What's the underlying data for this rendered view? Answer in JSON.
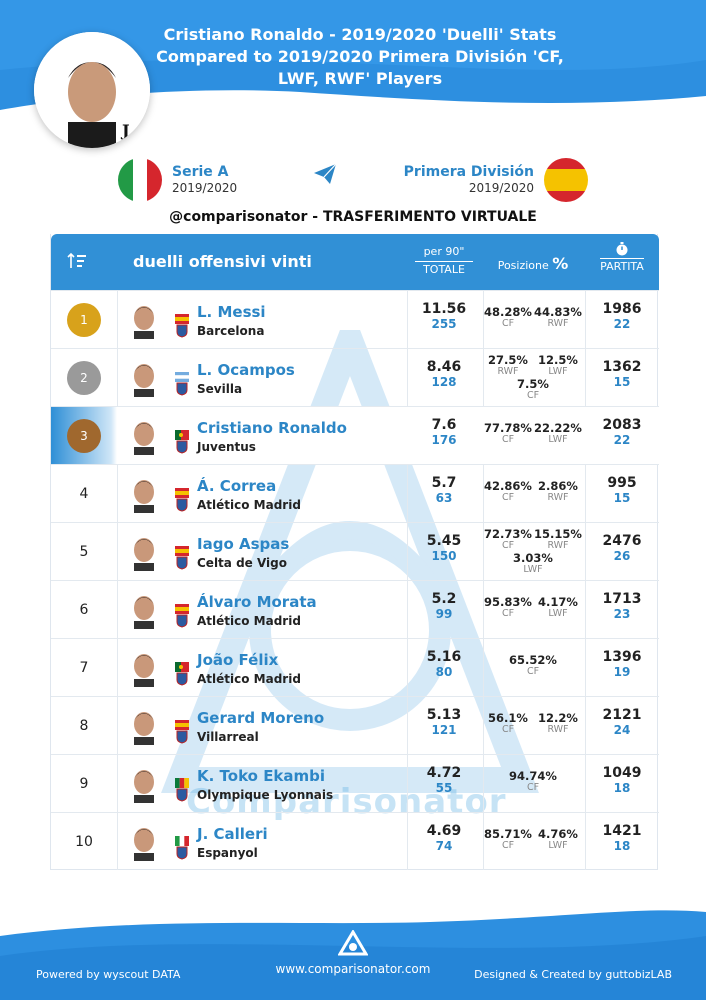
{
  "header": {
    "title_line1": "Cristiano Ronaldo - 2019/2020 'Duelli' Stats",
    "title_line2": "Compared to 2019/2020 Primera División 'CF,",
    "title_line3": "LWF, RWF' Players"
  },
  "league_left": {
    "name": "Serie A",
    "season": "2019/2020"
  },
  "league_right": {
    "name": "Primera División",
    "season": "2019/2020"
  },
  "tagline": "@comparisonator - TRASFERIMENTO VIRTUALE",
  "table_header": {
    "category": "duelli offensivi vinti",
    "per90": "per 90\"",
    "total": "TOTALE",
    "position": "Posizione",
    "position_symbol": "%",
    "match": "PARTITA"
  },
  "rows": [
    {
      "rank": "1",
      "name": "L. Messi",
      "club": "Barcelona",
      "per90": "11.56",
      "total": "255",
      "pos": [
        {
          "p": "48.28%",
          "r": "CF"
        },
        {
          "p": "44.83%",
          "r": "RWF"
        }
      ],
      "minutes": "1986",
      "matches": "22"
    },
    {
      "rank": "2",
      "name": "L. Ocampos",
      "club": "Sevilla",
      "per90": "8.46",
      "total": "128",
      "pos": [
        {
          "p": "27.5%",
          "r": "RWF"
        },
        {
          "p": "12.5%",
          "r": "LWF"
        },
        {
          "p": "7.5%",
          "r": "CF"
        }
      ],
      "minutes": "1362",
      "matches": "15"
    },
    {
      "rank": "3",
      "name": "Cristiano Ronaldo",
      "club": "Juventus",
      "per90": "7.6",
      "total": "176",
      "pos": [
        {
          "p": "77.78%",
          "r": "CF"
        },
        {
          "p": "22.22%",
          "r": "LWF"
        }
      ],
      "minutes": "2083",
      "matches": "22"
    },
    {
      "rank": "4",
      "name": "Á. Correa",
      "club": "Atlético Madrid",
      "per90": "5.7",
      "total": "63",
      "pos": [
        {
          "p": "42.86%",
          "r": "CF"
        },
        {
          "p": "2.86%",
          "r": "RWF"
        }
      ],
      "minutes": "995",
      "matches": "15"
    },
    {
      "rank": "5",
      "name": "Iago Aspas",
      "club": "Celta de Vigo",
      "per90": "5.45",
      "total": "150",
      "pos": [
        {
          "p": "72.73%",
          "r": "CF"
        },
        {
          "p": "15.15%",
          "r": "RWF"
        },
        {
          "p": "3.03%",
          "r": "LWF"
        }
      ],
      "minutes": "2476",
      "matches": "26"
    },
    {
      "rank": "6",
      "name": "Álvaro Morata",
      "club": "Atlético Madrid",
      "per90": "5.2",
      "total": "99",
      "pos": [
        {
          "p": "95.83%",
          "r": "CF"
        },
        {
          "p": "4.17%",
          "r": "LWF"
        }
      ],
      "minutes": "1713",
      "matches": "23"
    },
    {
      "rank": "7",
      "name": "João Félix",
      "club": "Atlético Madrid",
      "per90": "5.16",
      "total": "80",
      "pos": [
        {
          "p": "65.52%",
          "r": "CF"
        }
      ],
      "minutes": "1396",
      "matches": "19"
    },
    {
      "rank": "8",
      "name": "Gerard Moreno",
      "club": "Villarreal",
      "per90": "5.13",
      "total": "121",
      "pos": [
        {
          "p": "56.1%",
          "r": "CF"
        },
        {
          "p": "12.2%",
          "r": "RWF"
        }
      ],
      "minutes": "2121",
      "matches": "24"
    },
    {
      "rank": "9",
      "name": "K. Toko Ekambi",
      "club": "Olympique Lyonnais",
      "per90": "4.72",
      "total": "55",
      "pos": [
        {
          "p": "94.74%",
          "r": "CF"
        }
      ],
      "minutes": "1049",
      "matches": "18"
    },
    {
      "rank": "10",
      "name": "J. Calleri",
      "club": "Espanyol",
      "per90": "4.69",
      "total": "74",
      "pos": [
        {
          "p": "85.71%",
          "r": "CF"
        },
        {
          "p": "4.76%",
          "r": "LWF"
        }
      ],
      "minutes": "1421",
      "matches": "18"
    }
  ],
  "row_flags": [
    "spain",
    "argentina",
    "portugal",
    "spain",
    "spain",
    "spain",
    "portugal",
    "spain",
    "cameroon",
    "italy"
  ],
  "watermark_text": "Comparisonator",
  "footer": {
    "left": "Powered by wyscout DATA",
    "center": "www.comparisonator.com",
    "right": "Designed & Created by guttobizLAB"
  },
  "colors": {
    "accent": "#2c86c6",
    "header": "#3190d6",
    "gold": "#d8a21b",
    "silver": "#9a9a9a",
    "bronze": "#a0682e"
  },
  "icons": [
    "sort-icon",
    "paper-plane-icon",
    "stopwatch-icon",
    "comparisonator-logo-icon"
  ]
}
